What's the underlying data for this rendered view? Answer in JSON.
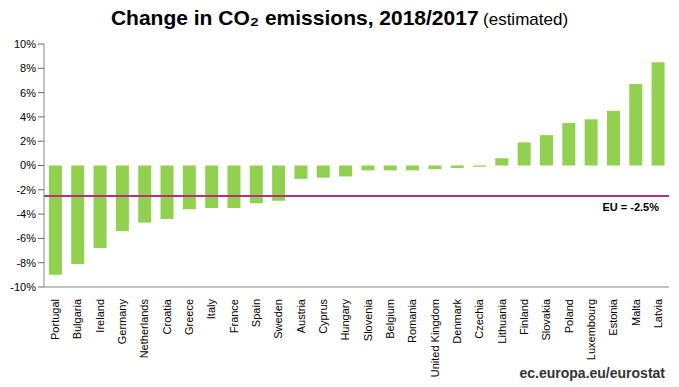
{
  "chart_data": {
    "type": "bar",
    "title": "Change in CO₂ emissions, 2018/2017",
    "subtitle": "(estimated)",
    "footer": "ec.europa.eu/eurostat",
    "categories": [
      "Portugal",
      "Bulgaria",
      "Ireland",
      "Germany",
      "Netherlands",
      "Croatia",
      "Greece",
      "Italy",
      "France",
      "Spain",
      "Sweden",
      "Austria",
      "Cyprus",
      "Hungary",
      "Slovenia",
      "Belgium",
      "Romania",
      "United Kingdom",
      "Denmark",
      "Czechia",
      "Lithuania",
      "Finland",
      "Slovakia",
      "Poland",
      "Luxembourg",
      "Estonia",
      "Malta",
      "Latvia"
    ],
    "values": [
      -9.0,
      -8.1,
      -6.8,
      -5.4,
      -4.7,
      -4.4,
      -3.6,
      -3.5,
      -3.5,
      -3.1,
      -2.9,
      -1.1,
      -1.0,
      -0.9,
      -0.4,
      -0.4,
      -0.4,
      -0.3,
      -0.2,
      -0.1,
      0.6,
      1.9,
      2.5,
      3.5,
      3.8,
      4.5,
      6.7,
      8.5
    ],
    "color": "#92d050",
    "ylim": [
      -10,
      10
    ],
    "yticks": [
      {
        "value": -10,
        "label": "-10%"
      },
      {
        "value": -8,
        "label": "-8%"
      },
      {
        "value": -6,
        "label": "-6%"
      },
      {
        "value": -4,
        "label": "-4%"
      },
      {
        "value": -2,
        "label": "-2%"
      },
      {
        "value": 0,
        "label": "0%"
      },
      {
        "value": 2,
        "label": "2%"
      },
      {
        "value": 4,
        "label": "4%"
      },
      {
        "value": 6,
        "label": "6%"
      },
      {
        "value": 8,
        "label": "8%"
      },
      {
        "value": 10,
        "label": "10%"
      }
    ],
    "grid": false,
    "reference_line": {
      "value": -2.5,
      "label": "EU = -2.5%",
      "color": "#b5307e"
    }
  }
}
